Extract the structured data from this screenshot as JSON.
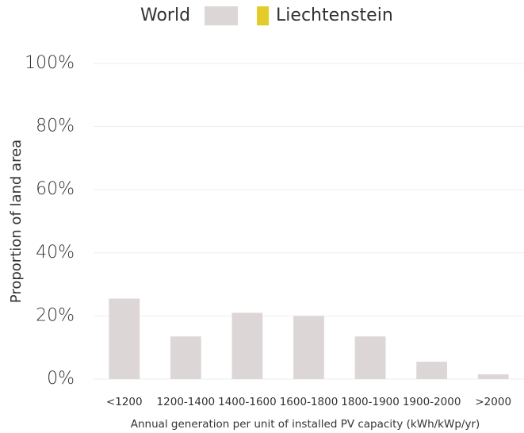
{
  "chart_data": {
    "type": "bar",
    "categories": [
      "<1200",
      "1200-1400",
      "1400-1600",
      "1600-1800",
      "1800-1900",
      "1900-2000",
      ">2000"
    ],
    "series": [
      {
        "name": "World",
        "color": "#ddd6d6",
        "values": [
          25.5,
          13.5,
          21,
          20,
          13.5,
          5.5,
          1.5
        ]
      },
      {
        "name": "Liechtenstein",
        "color": "#e3cc2a",
        "values": [
          0,
          0,
          0,
          0,
          0,
          0,
          0
        ]
      }
    ],
    "xlabel": "Annual generation per unit of installed PV capacity (kWh/kWp/yr)",
    "ylabel": "Proportion of land area",
    "ylim": [
      0,
      100
    ],
    "yticks": [
      {
        "value": 0,
        "label": "0%"
      },
      {
        "value": 20,
        "label": "20%"
      },
      {
        "value": 40,
        "label": "40%"
      },
      {
        "value": 60,
        "label": "60%"
      },
      {
        "value": 80,
        "label": "80%"
      },
      {
        "value": 100,
        "label": "100%"
      }
    ],
    "grid": true
  }
}
